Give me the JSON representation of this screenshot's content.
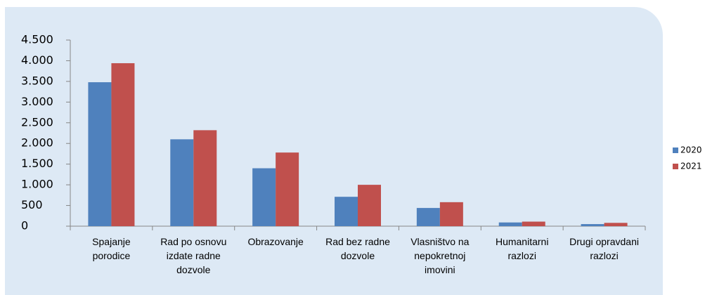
{
  "chart_data": {
    "type": "bar",
    "categories": [
      "Spajanje porodice",
      "Rad po osnovu izdate radne dozvole",
      "Obrazovanje",
      "Rad bez radne dozvole",
      "Vlasništvo na nepokretnoj imovini",
      "Humanitarni razlozi",
      "Drugi opravdani razlozi"
    ],
    "series": [
      {
        "name": "2020",
        "color": "#4f81bd",
        "values": [
          3480,
          2100,
          1400,
          710,
          440,
          90,
          50
        ]
      },
      {
        "name": "2021",
        "color": "#c0504d",
        "values": [
          3940,
          2320,
          1780,
          1000,
          580,
          110,
          80
        ]
      }
    ],
    "ylim": [
      0,
      4500
    ],
    "yticks": [
      0,
      500,
      {
        "value": 1000,
        "label": "1.000"
      },
      {
        "value": 1500,
        "label": "1.500"
      },
      {
        "value": 2000,
        "label": "2.000"
      },
      {
        "value": 2500,
        "label": "2.500"
      },
      {
        "value": 3000,
        "label": "3.000"
      },
      {
        "value": 3500,
        "label": "3.500"
      },
      {
        "value": 4000,
        "label": "4.000"
      },
      {
        "value": 4500,
        "label": "4.500"
      }
    ],
    "grid": false,
    "legend": "right"
  }
}
